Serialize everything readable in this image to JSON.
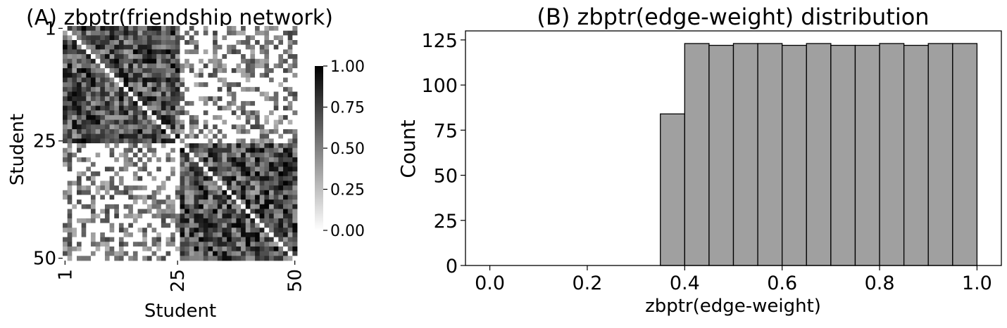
{
  "chart_data": [
    {
      "type": "heatmap",
      "title": "(A) zbptr(friendship network)",
      "xlabel": "Student",
      "ylabel": "Student",
      "xticks": [
        "1",
        "25",
        "50"
      ],
      "yticks": [
        "1",
        "25",
        "50"
      ],
      "n": 50,
      "blocks": [
        {
          "rows": [
            1,
            25
          ],
          "cols": [
            1,
            25
          ],
          "level": "high"
        },
        {
          "rows": [
            26,
            50
          ],
          "cols": [
            26,
            50
          ],
          "level": "high"
        },
        {
          "rows": [
            1,
            25
          ],
          "cols": [
            26,
            50
          ],
          "level": "low"
        },
        {
          "rows": [
            26,
            50
          ],
          "cols": [
            1,
            25
          ],
          "level": "low"
        }
      ],
      "colorbar": {
        "min": 0.0,
        "max": 1.0,
        "ticks": [
          "0.00",
          "0.25",
          "0.50",
          "0.75",
          "1.00"
        ],
        "colormap": "white-to-black"
      }
    },
    {
      "type": "bar",
      "title": "(B) zbptr(edge-weight) distribution",
      "xlabel": "zbptr(edge-weight)",
      "ylabel": "Count",
      "bin_edges": [
        0.0,
        0.05,
        0.1,
        0.15,
        0.2,
        0.25,
        0.3,
        0.35,
        0.4,
        0.45,
        0.5,
        0.55,
        0.6,
        0.65,
        0.7,
        0.75,
        0.8,
        0.85,
        0.9,
        0.95,
        1.0
      ],
      "values": [
        0,
        0,
        0,
        0,
        0,
        0,
        0,
        84,
        123,
        122,
        123,
        123,
        122,
        123,
        122,
        122,
        123,
        122,
        123,
        123
      ],
      "xticks": [
        "0.0",
        "0.2",
        "0.4",
        "0.6",
        "0.8",
        "1.0"
      ],
      "yticks": [
        "0",
        "25",
        "50",
        "75",
        "100",
        "125"
      ],
      "xlim": [
        -0.05,
        1.05
      ],
      "ylim": [
        0,
        130
      ],
      "bar_color": "#a0a0a0",
      "edge_color": "#000000"
    }
  ]
}
